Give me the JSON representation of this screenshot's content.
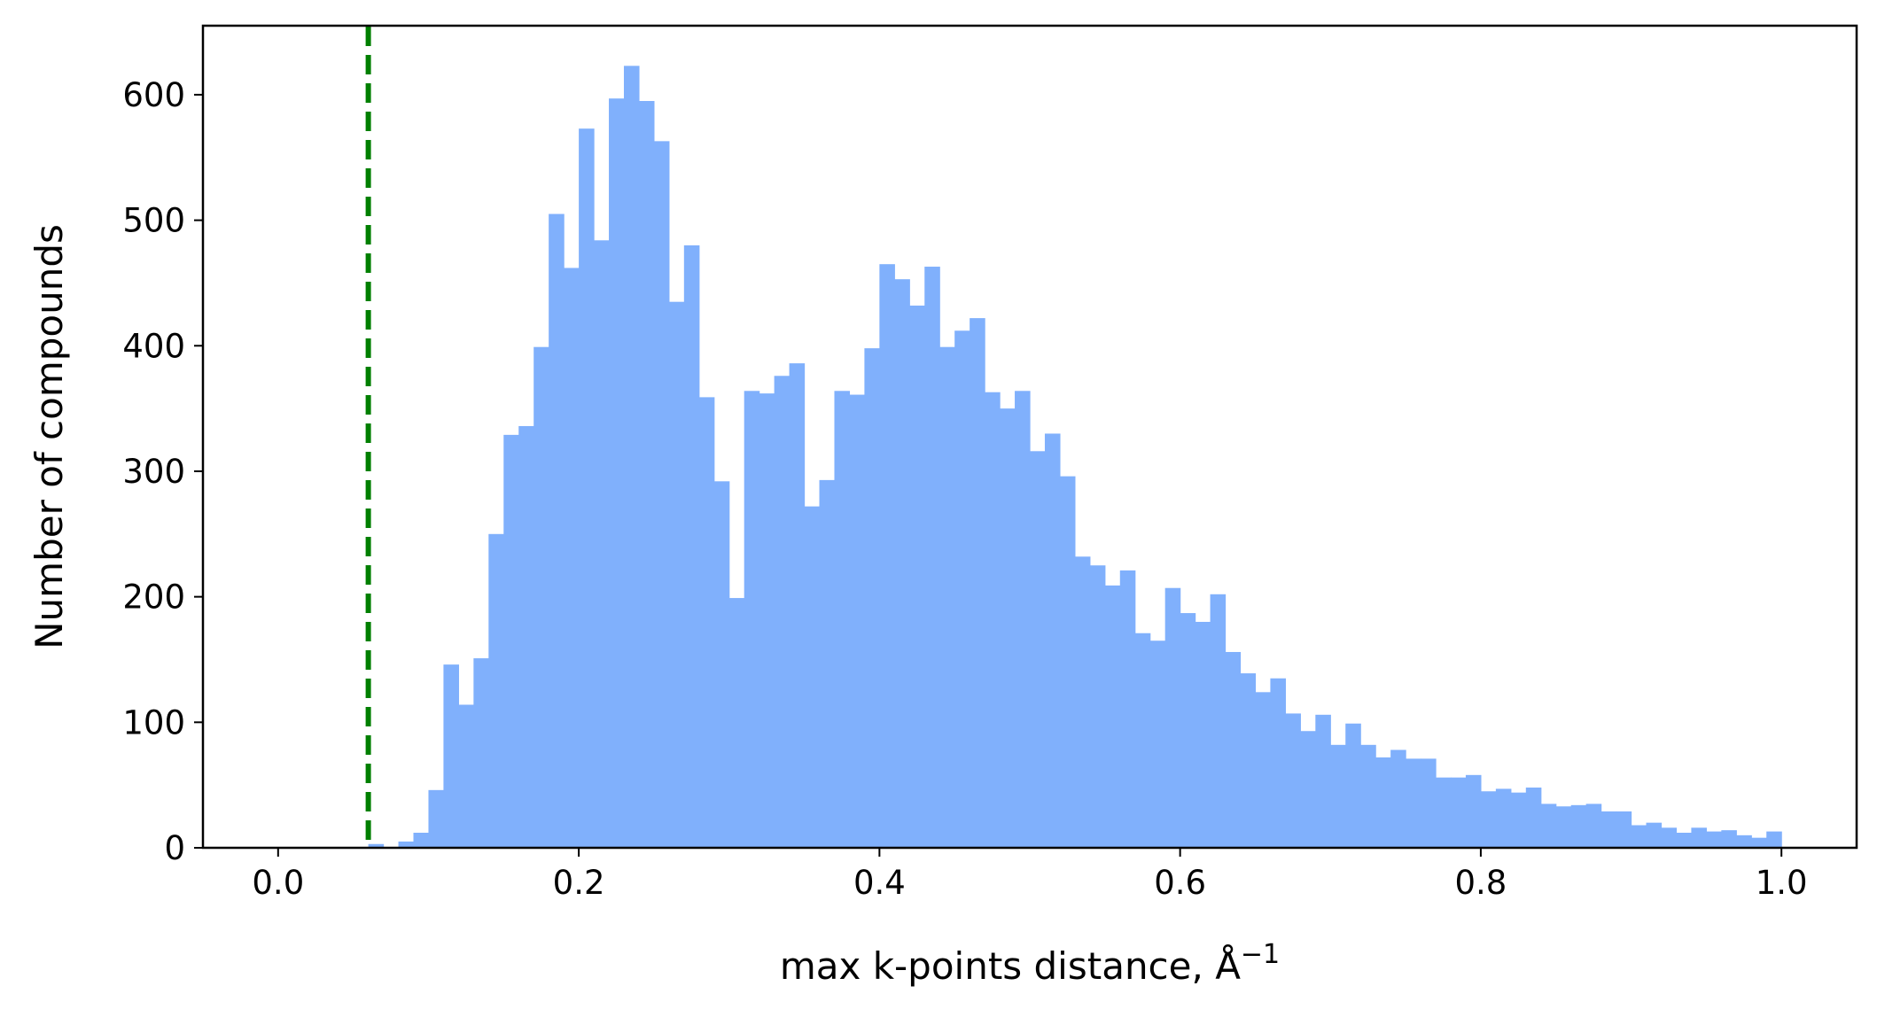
{
  "chart_data": {
    "type": "bar",
    "title": "",
    "xlabel": "max k-points distance, Å",
    "xlabel_superscript": "−1",
    "ylabel": "Number of compounds",
    "xlim": [
      -0.05,
      1.05
    ],
    "ylim": [
      0,
      655
    ],
    "xticks": [
      "0.0",
      "0.2",
      "0.4",
      "0.6",
      "0.8",
      "1.0"
    ],
    "yticks": [
      "0",
      "100",
      "200",
      "300",
      "400",
      "500",
      "600"
    ],
    "grid": false,
    "legend": "none",
    "bar_color": "#80b0fc",
    "bin_width": 0.01,
    "bin_starts": [
      0.06,
      0.07,
      0.08,
      0.09,
      0.1,
      0.11,
      0.12,
      0.13,
      0.14,
      0.15,
      0.16,
      0.17,
      0.18,
      0.19,
      0.2,
      0.21,
      0.22,
      0.23,
      0.24,
      0.25,
      0.26,
      0.27,
      0.28,
      0.29,
      0.3,
      0.31,
      0.32,
      0.33,
      0.34,
      0.35,
      0.36,
      0.37,
      0.38,
      0.39,
      0.4,
      0.41,
      0.42,
      0.43,
      0.44,
      0.45,
      0.46,
      0.47,
      0.48,
      0.49,
      0.5,
      0.51,
      0.52,
      0.53,
      0.54,
      0.55,
      0.56,
      0.57,
      0.58,
      0.59,
      0.6,
      0.61,
      0.62,
      0.63,
      0.64,
      0.65,
      0.66,
      0.67,
      0.68,
      0.69,
      0.7,
      0.71,
      0.72,
      0.73,
      0.74,
      0.75,
      0.76,
      0.77,
      0.78,
      0.79,
      0.8,
      0.81,
      0.82,
      0.83,
      0.84,
      0.85,
      0.86,
      0.87,
      0.88,
      0.89,
      0.9,
      0.91,
      0.92,
      0.93,
      0.94,
      0.95,
      0.96,
      0.97,
      0.98,
      0.99
    ],
    "values": [
      3,
      0,
      5,
      12,
      46,
      146,
      114,
      151,
      250,
      329,
      336,
      399,
      505,
      462,
      573,
      484,
      597,
      623,
      595,
      563,
      435,
      480,
      359,
      292,
      199,
      364,
      362,
      376,
      386,
      272,
      293,
      364,
      361,
      398,
      465,
      453,
      432,
      463,
      399,
      412,
      422,
      363,
      350,
      364,
      316,
      330,
      296,
      232,
      225,
      209,
      221,
      171,
      165,
      207,
      187,
      180,
      202,
      156,
      139,
      124,
      135,
      107,
      93,
      106,
      82,
      99,
      82,
      72,
      78,
      71,
      71,
      56,
      56,
      58,
      45,
      47,
      44,
      48,
      35,
      33,
      34,
      35,
      29,
      29,
      18,
      20,
      16,
      12,
      16,
      13,
      14,
      10,
      8,
      13
    ],
    "reference_line": {
      "x": 0.06,
      "style": "dashed",
      "color": "#007f00"
    }
  }
}
